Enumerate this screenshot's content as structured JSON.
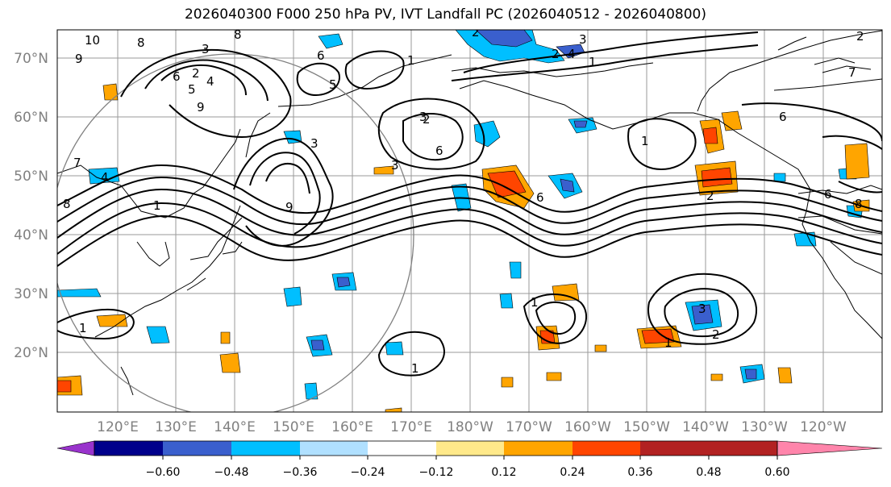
{
  "title": "2026040300 F000 250 hPa PV, IVT Landfall PC (2026040512 - 2026040800)",
  "lat_labels": [
    "70°N",
    "60°N",
    "50°N",
    "40°N",
    "30°N",
    "20°N"
  ],
  "lon_labels": [
    "120°E",
    "130°E",
    "140°E",
    "150°E",
    "160°E",
    "170°E",
    "180°W",
    "170°W",
    "160°W",
    "150°W",
    "140°W",
    "130°W",
    "120°W"
  ],
  "colorbar": {
    "colors": [
      "#9933cc",
      "#00008b",
      "#3a5fcd",
      "#00bfff",
      "#b0e0ff",
      "#ffffff",
      "#ffe98a",
      "#ffa500",
      "#ff4500",
      "#b22222",
      "#ff85ab"
    ],
    "tick_labels": [
      "−0.60",
      "−0.48",
      "−0.36",
      "−0.24",
      "−0.12",
      "0.12",
      "0.24",
      "0.36",
      "0.48",
      "0.60"
    ]
  },
  "contour_labels": [
    "10",
    "9",
    "8",
    "8",
    "6",
    "5",
    "3",
    "2",
    "4",
    "6",
    "5",
    "2",
    "4",
    "3",
    "1",
    "1",
    "6",
    "2",
    "9",
    "7",
    "4",
    "3",
    "6",
    "9",
    "1",
    "1",
    "2",
    "6",
    "1",
    "6",
    "2",
    "8",
    "8",
    "1",
    "2",
    "1",
    "3",
    "3",
    "3",
    "1",
    "2",
    "7"
  ]
}
